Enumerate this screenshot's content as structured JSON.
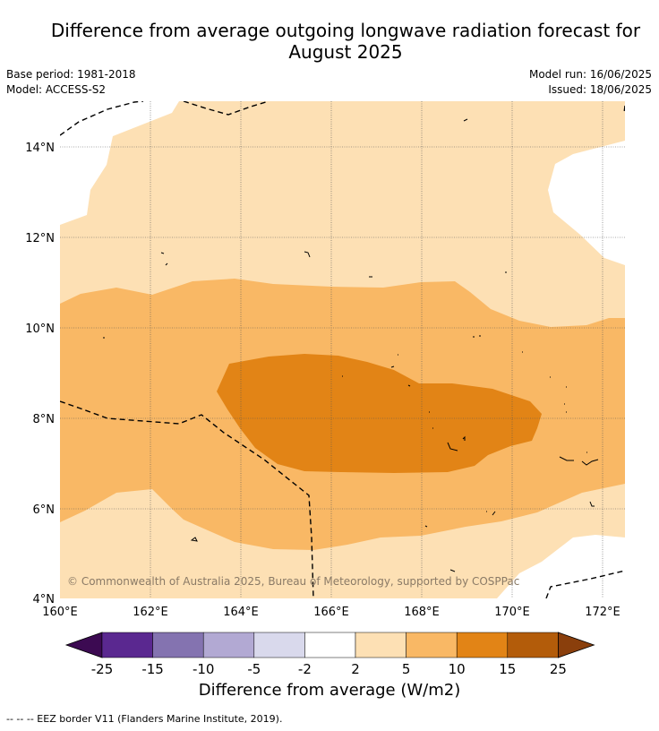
{
  "title": "Difference from average outgoing longwave radiation forecast for August 2025",
  "meta": {
    "base_period": "Base period: 1981-2018",
    "model": "Model: ACCESS-S2",
    "model_run": "Model run: 16/06/2025",
    "issued": "Issued: 18/06/2025"
  },
  "map": {
    "lon_ticks": [
      "160°E",
      "162°E",
      "164°E",
      "166°E",
      "168°E",
      "170°E",
      "172°E"
    ],
    "lat_ticks": [
      "14°N",
      "12°N",
      "10°N",
      "8°N",
      "6°N",
      "4°N"
    ],
    "copyright": "© Commonwealth of Australia 2025, Bureau of Meteorology, supported by COSPPac",
    "colors": {
      "band_2_5": "#fde0b4",
      "band_5_10": "#f9b865",
      "band_10_15": "#e28416",
      "zero_band": "#ffffff"
    }
  },
  "colorbar": {
    "boundaries": [
      "-25",
      "-15",
      "-10",
      "-5",
      "-2",
      "2",
      "5",
      "10",
      "15",
      "25"
    ],
    "colors": [
      "#3c0a52",
      "#5a2890",
      "#8473b0",
      "#b2a9d3",
      "#d9d9ec",
      "#ffffff",
      "#fde0b4",
      "#f9b865",
      "#e28416",
      "#b35c0a",
      "#8a3f0c"
    ],
    "title": "Difference from average (W/m2)"
  },
  "footnote": "--  --  -- EEZ border V11 (Flanders Marine Institute, 2019)."
}
